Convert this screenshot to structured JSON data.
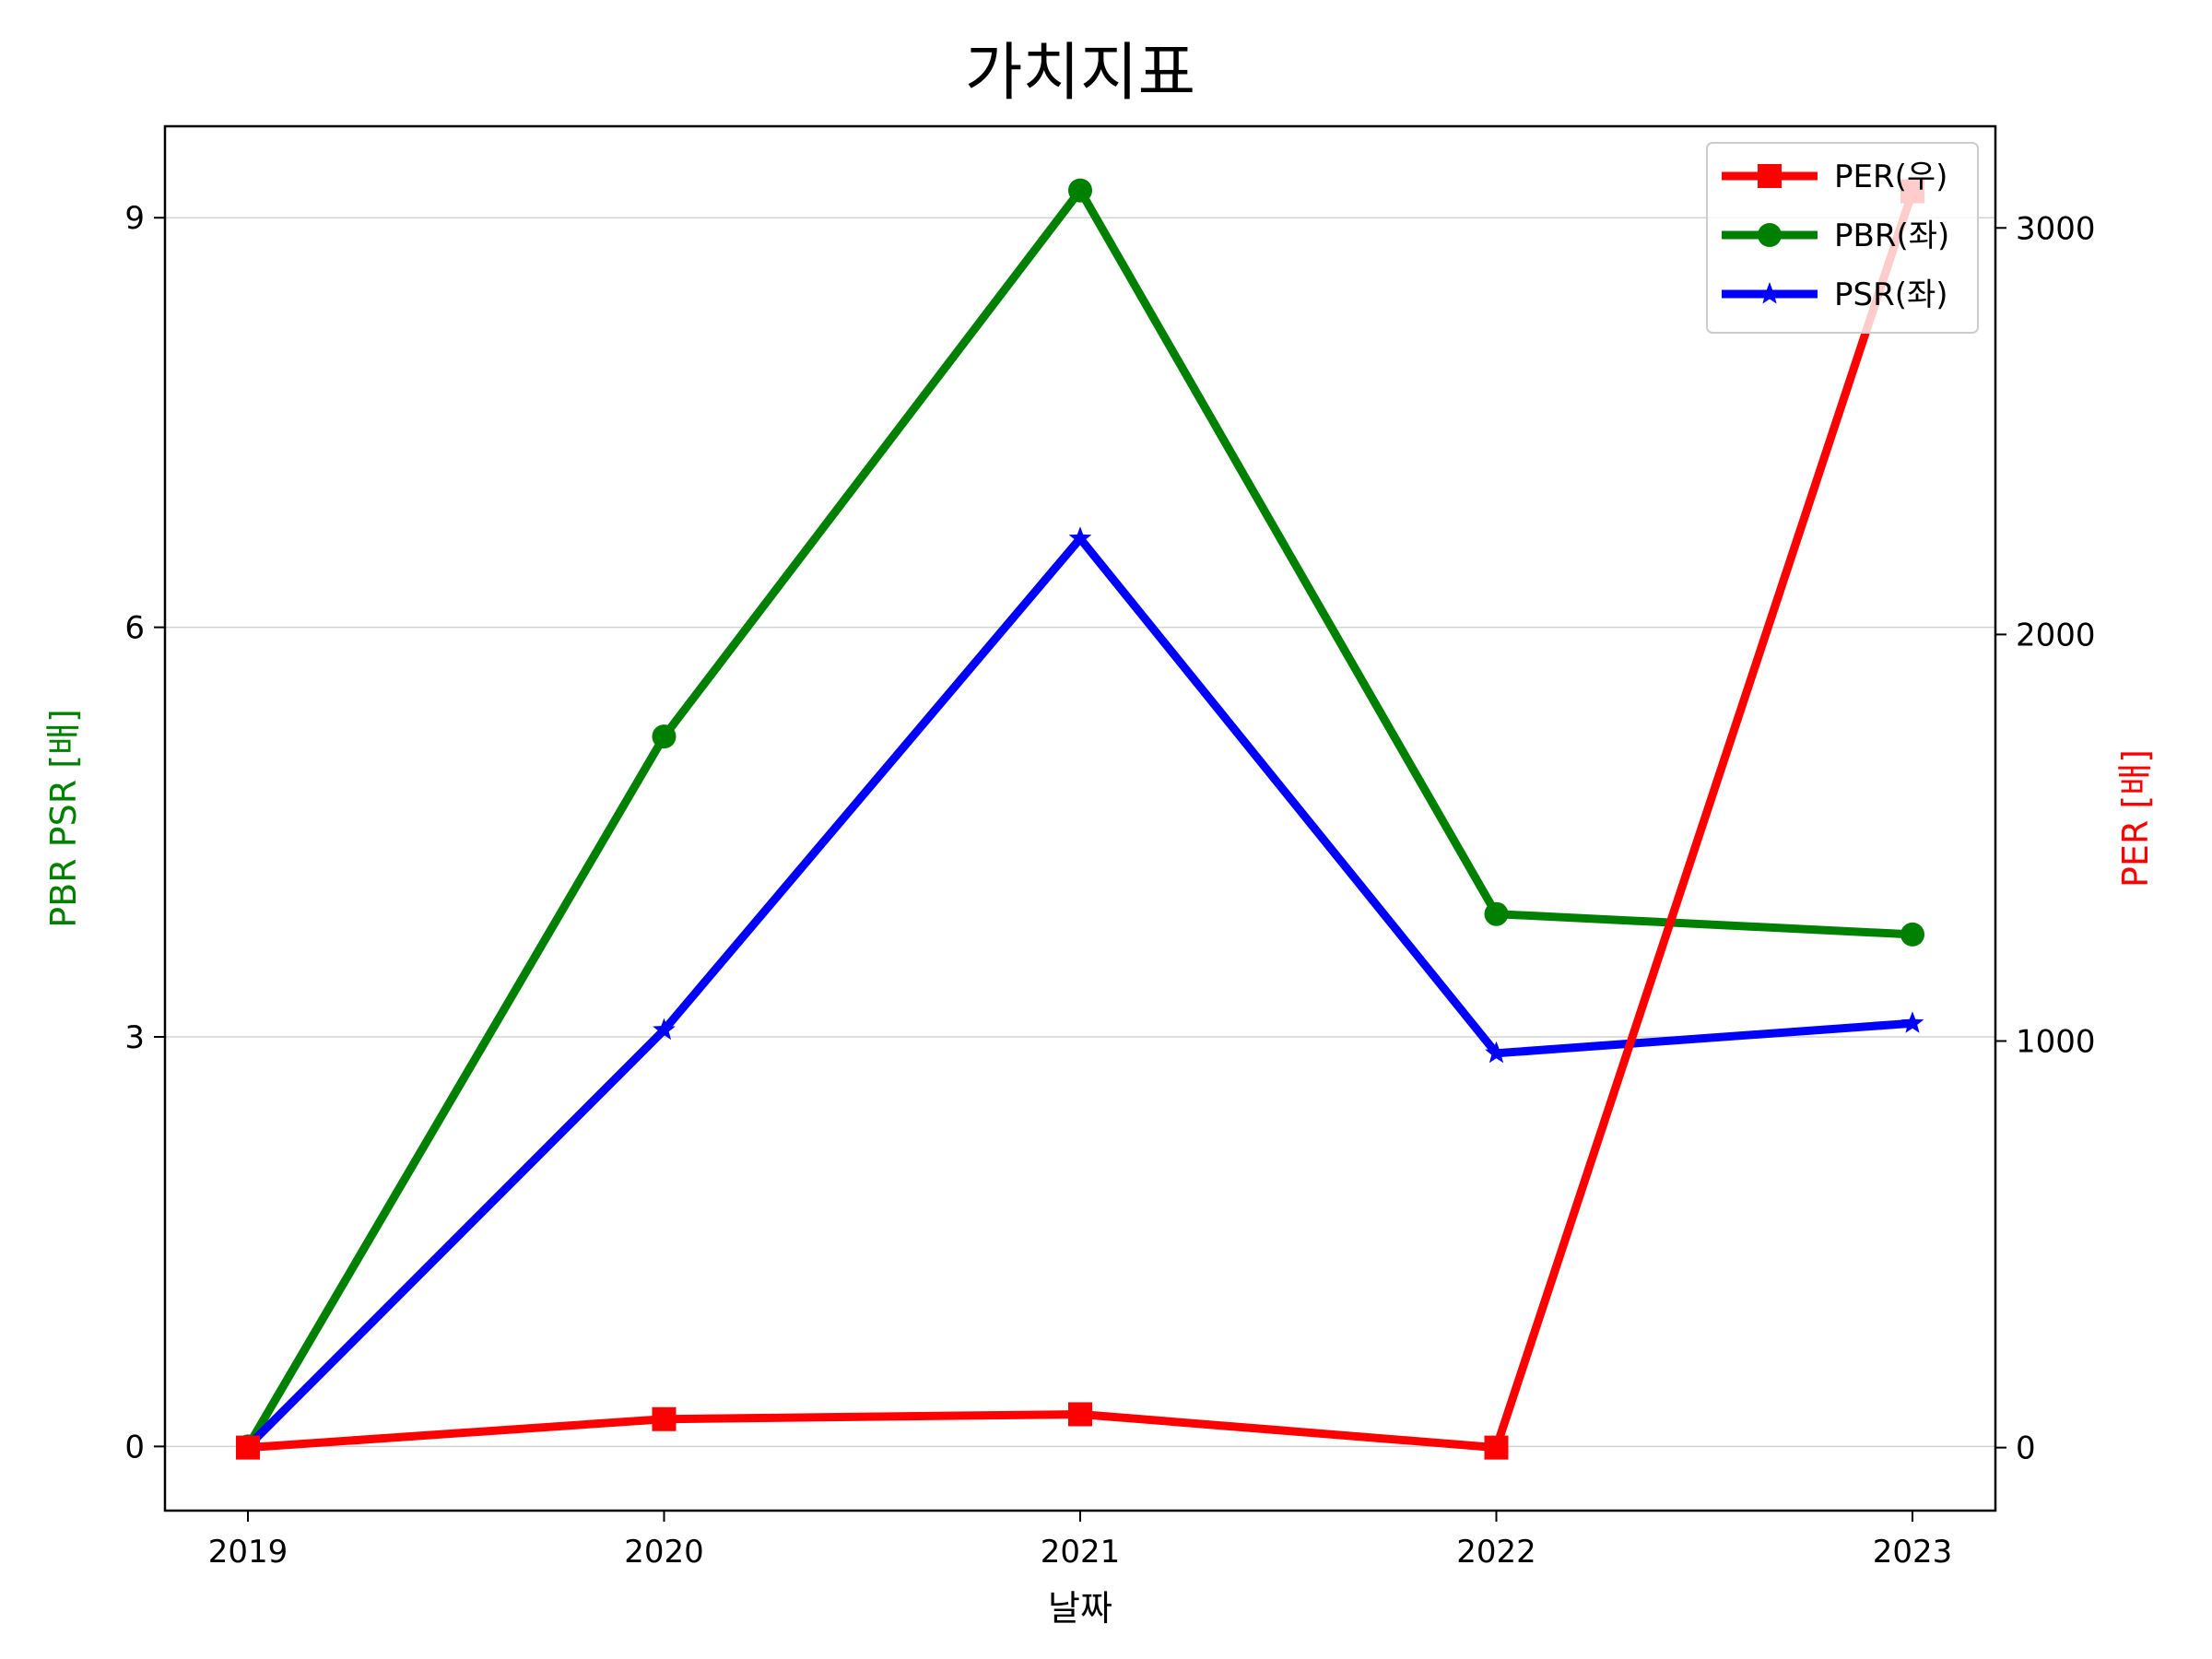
{
  "chart_data": {
    "type": "line",
    "title": "가치지표",
    "xlabel": "날짜",
    "ylabel_left": "PBR PSR [배]",
    "ylabel_right": "PER [배]",
    "ylabel_left_color": "#008000",
    "ylabel_right_color": "#ff0000",
    "categories": [
      "2019",
      "2020",
      "2021",
      "2022",
      "2023"
    ],
    "ylim_left": [
      -0.47,
      9.67
    ],
    "yticks_left": [
      0,
      3,
      6,
      9
    ],
    "ylim_right": [
      -155,
      3250
    ],
    "yticks_right": [
      0,
      1000,
      2000,
      3000
    ],
    "grid": "horizontal",
    "legend_position": "top-right",
    "series": [
      {
        "name": "PER(우)",
        "axis": "right",
        "color": "#ff0000",
        "marker": "square",
        "values": [
          0,
          70,
          82,
          0,
          3090
        ]
      },
      {
        "name": "PBR(좌)",
        "axis": "left",
        "color": "#008000",
        "marker": "circle",
        "values": [
          0,
          5.2,
          9.2,
          3.9,
          3.75
        ]
      },
      {
        "name": "PSR(좌)",
        "axis": "left",
        "color": "#0000ff",
        "marker": "star",
        "values": [
          0,
          3.05,
          6.65,
          2.88,
          3.1
        ]
      }
    ]
  }
}
